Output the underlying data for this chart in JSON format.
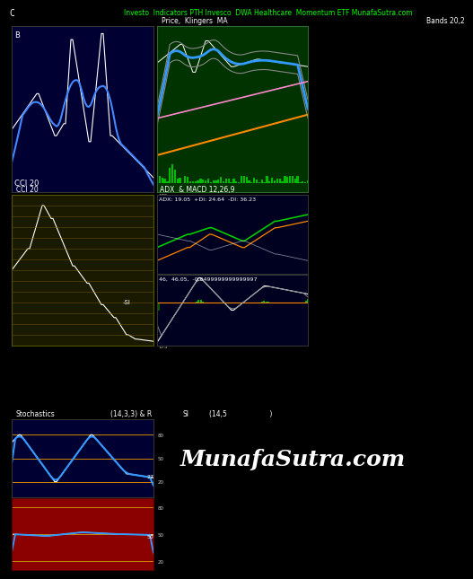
{
  "title_text": "Investo  Indicators PTH Invesco  DWA Healthcare  Momentum ETF MunafaSutra.com",
  "title_color": "#00ff00",
  "title_left": "C",
  "background_color": "#000000",
  "panel1_bg": "#000033",
  "panel2_bg": "#003300",
  "panel3_bg": "#1a1a00",
  "panel4_bg": "#000020",
  "panel5_bg": "#000020",
  "panel6_bg": "#000033",
  "panel7_bg": "#8b0000",
  "panel1_label": "B",
  "panel1_sublabel": "CCI 20",
  "panel2_label": "Price,  Klingers  MA",
  "panel2_label2": "Bands 20,2",
  "panel3_label": "CCI 20",
  "panel4_header": "ADX  & MACD 12,26,9",
  "panel4_label": "ADX: 19.05  +DI: 24.64  -DI: 36.23",
  "panel5_label": "46,  46.05,  -0.0499999999999997",
  "stoch_label": "Stochastics",
  "stoch_params": "(14,3,3) & R",
  "si_label": "SI",
  "si_params": "(14,5                    )",
  "munafa_text": "MunafaSutra.com",
  "munafa_color": "#ffffff"
}
